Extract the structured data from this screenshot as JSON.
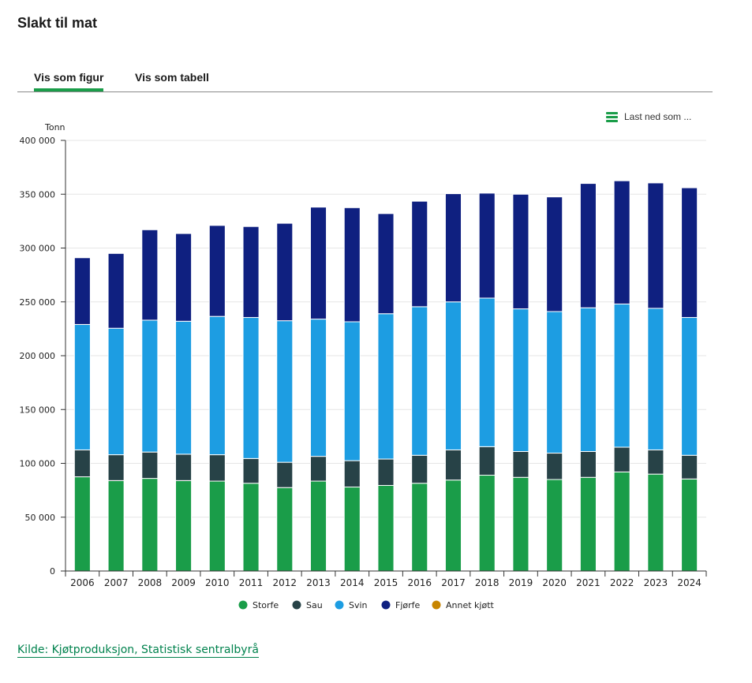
{
  "page": {
    "title": "Slakt til mat",
    "tabs": [
      {
        "label": "Vis som figur",
        "active": true
      },
      {
        "label": "Vis som tabell",
        "active": false
      }
    ],
    "download_label": "Last ned som ...",
    "download_icon": "menu-icon",
    "source_link": "Kilde: Kjøtproduksjon, Statistisk sentralbyrå",
    "accent_color": "#1a9d49"
  },
  "chart_data": {
    "type": "bar",
    "stacked": true,
    "ylabel": "Tonn",
    "ylim": [
      0,
      400000
    ],
    "yticks": [
      0,
      50000,
      100000,
      150000,
      200000,
      250000,
      300000,
      350000,
      400000
    ],
    "ytick_labels": [
      "0",
      "50 000",
      "100 000",
      "150 000",
      "200 000",
      "250 000",
      "300 000",
      "350 000",
      "400 000"
    ],
    "grid": true,
    "legend_position": "bottom",
    "categories": [
      "2006",
      "2007",
      "2008",
      "2009",
      "2010",
      "2011",
      "2012",
      "2013",
      "2014",
      "2015",
      "2016",
      "2017",
      "2018",
      "2019",
      "2020",
      "2021",
      "2022",
      "2023",
      "2024"
    ],
    "series": [
      {
        "name": "Storfe",
        "color": "#1a9d49",
        "values": [
          87500,
          84000,
          86000,
          84000,
          83500,
          81500,
          77500,
          83500,
          78000,
          79500,
          81500,
          84500,
          89000,
          87000,
          85000,
          87000,
          92000,
          90000,
          85500
        ]
      },
      {
        "name": "Sau",
        "color": "#274247",
        "values": [
          25000,
          24000,
          24500,
          24500,
          24500,
          23000,
          23500,
          23000,
          24500,
          24500,
          26000,
          28000,
          26500,
          24000,
          24500,
          24000,
          23000,
          22500,
          22000
        ]
      },
      {
        "name": "Svin",
        "color": "#1d9de2",
        "values": [
          116500,
          117500,
          122500,
          123500,
          128500,
          131000,
          131500,
          127500,
          129000,
          135000,
          138000,
          137500,
          138000,
          132500,
          131500,
          133500,
          133000,
          131500,
          128000
        ]
      },
      {
        "name": "Fjørfe",
        "color": "#0f2080",
        "values": [
          62000,
          69500,
          84000,
          81500,
          84500,
          84500,
          90500,
          104000,
          106000,
          93000,
          98000,
          100500,
          97500,
          106500,
          106500,
          115500,
          114500,
          116500,
          120500
        ]
      },
      {
        "name": "Annet kjøtt",
        "color": "#c78500",
        "values": [
          0,
          0,
          0,
          0,
          0,
          0,
          0,
          0,
          0,
          0,
          0,
          0,
          0,
          0,
          0,
          0,
          0,
          0,
          0
        ]
      }
    ]
  }
}
